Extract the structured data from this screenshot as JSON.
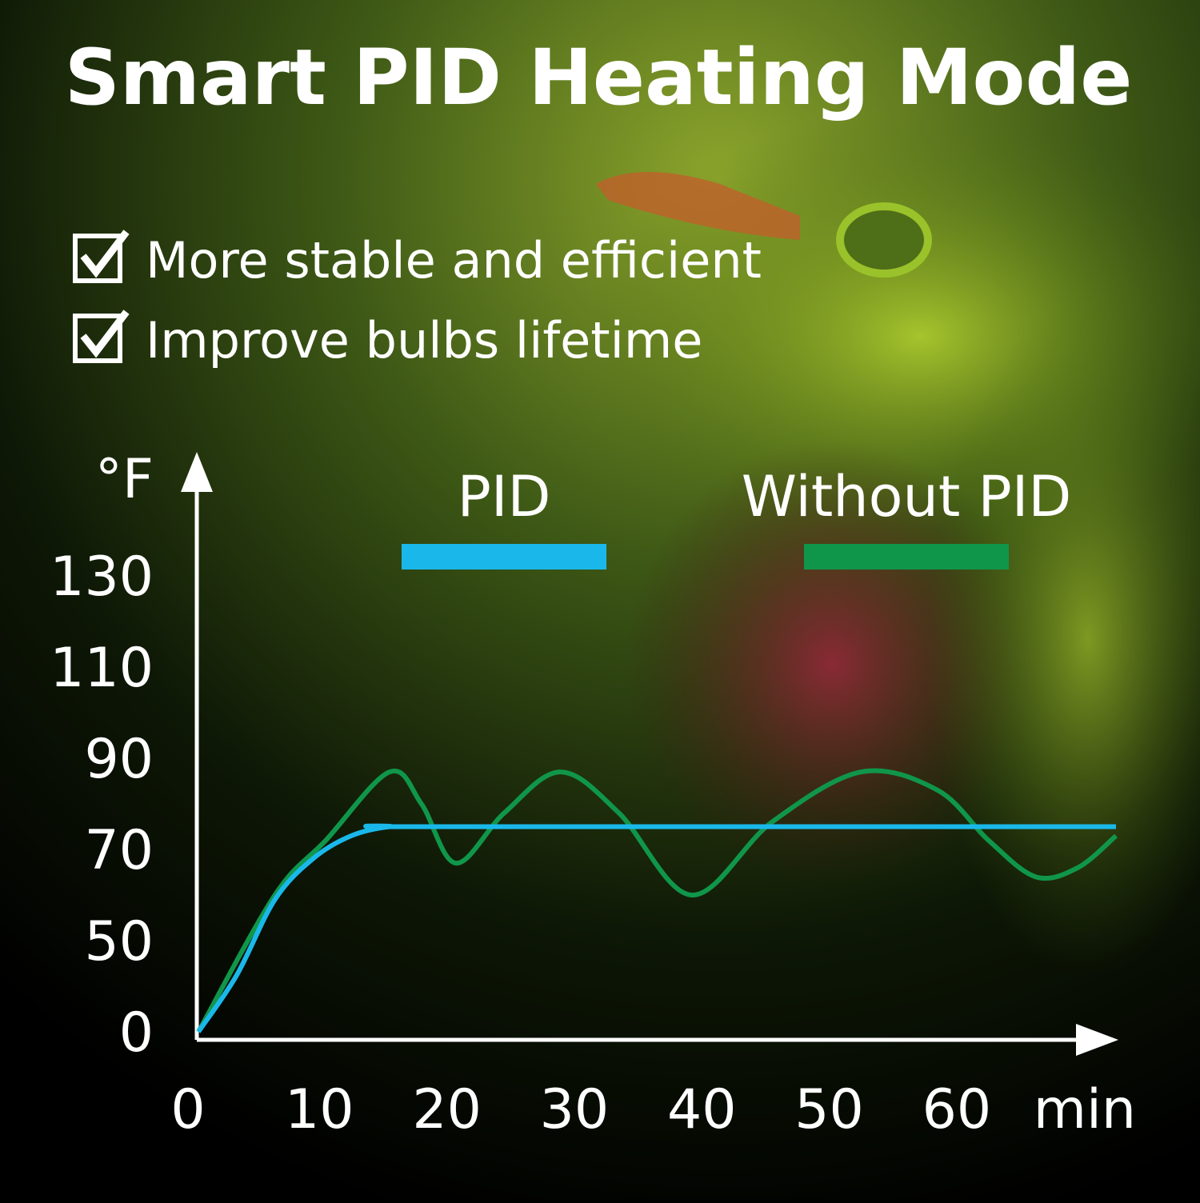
{
  "chart_data": {
    "type": "line",
    "title": "Smart PID Heating Mode",
    "features": [
      "More stable and efficient",
      "Improve bulbs lifetime"
    ],
    "y_label": "°F",
    "x_label": "min",
    "yticks": [
      0,
      50,
      70,
      90,
      110,
      130
    ],
    "xlim": [
      0,
      72
    ],
    "xticks": [
      0,
      10,
      20,
      30,
      40,
      50,
      60
    ],
    "series": [
      {
        "name": "PID",
        "color": "#1ab8ea",
        "x": [
          0,
          3,
          6,
          9,
          12,
          15,
          18,
          72
        ],
        "values": [
          0,
          31,
          59,
          68,
          73,
          75,
          75,
          75
        ]
      },
      {
        "name": "Without PID",
        "color": "#10964a",
        "x": [
          0,
          6,
          10,
          15,
          17.5,
          20.2,
          24,
          28.4,
          33,
          38.7,
          45,
          52,
          58,
          62,
          65.7,
          69,
          72
        ],
        "values": [
          0,
          60,
          72,
          87,
          80,
          67,
          78,
          87,
          78,
          60,
          76,
          87,
          83,
          72,
          64,
          66,
          73
        ]
      }
    ]
  }
}
